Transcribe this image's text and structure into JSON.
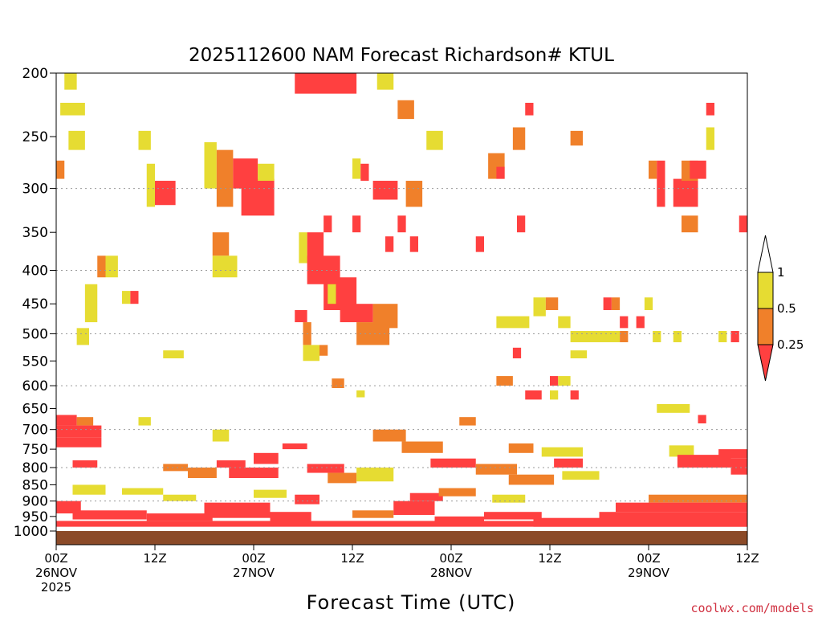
{
  "chart_data": {
    "type": "heatmap",
    "title": "2025112600 NAM Forecast Richardson# KTUL",
    "xlabel": "Forecast Time (UTC)",
    "ylabel": "",
    "x_range_hours": [
      0,
      84
    ],
    "y_range_hpa": [
      1000,
      200
    ],
    "y_scale": "log",
    "y_ticks": [
      200,
      250,
      300,
      350,
      400,
      450,
      500,
      550,
      600,
      650,
      700,
      750,
      800,
      850,
      900,
      950,
      1000
    ],
    "y_gridlines": [
      300,
      400,
      500,
      600,
      700,
      800,
      900
    ],
    "x_ticks": [
      {
        "hour": 0,
        "labels": [
          "00Z",
          "26NOV",
          "2025"
        ]
      },
      {
        "hour": 12,
        "labels": [
          "12Z"
        ]
      },
      {
        "hour": 24,
        "labels": [
          "00Z",
          "27NOV"
        ]
      },
      {
        "hour": 36,
        "labels": [
          "12Z"
        ]
      },
      {
        "hour": 48,
        "labels": [
          "00Z",
          "28NOV"
        ]
      },
      {
        "hour": 60,
        "labels": [
          "12Z"
        ]
      },
      {
        "hour": 72,
        "labels": [
          "00Z",
          "29NOV"
        ]
      },
      {
        "hour": 84,
        "labels": [
          "12Z"
        ]
      }
    ],
    "legend": {
      "position": "right",
      "thresholds": [
        "1",
        "0.5",
        "0.25"
      ],
      "categories": [
        {
          "name": "<0.25",
          "color": "#ff4040"
        },
        {
          "name": "0.25-0.5",
          "color": "#f0802a"
        },
        {
          "name": "0.5-1",
          "color": "#e6dc32"
        },
        {
          "name": ">1",
          "color": "#ffffff"
        }
      ]
    },
    "ground_color": "#8b4a28",
    "cells": [
      {
        "t0": 29.0,
        "t1": 36.5,
        "p_top": 200,
        "p_bot": 215,
        "c": "r"
      },
      {
        "t0": 39.0,
        "t1": 41.0,
        "p_top": 200,
        "p_bot": 212,
        "c": "y"
      },
      {
        "t0": 1.0,
        "t1": 2.5,
        "p_top": 200,
        "p_bot": 212,
        "c": "y"
      },
      {
        "t0": 0.5,
        "t1": 3.5,
        "p_top": 222,
        "p_bot": 232,
        "c": "y"
      },
      {
        "t0": 41.5,
        "t1": 43.5,
        "p_top": 220,
        "p_bot": 235,
        "c": "o"
      },
      {
        "t0": 57.0,
        "t1": 58.0,
        "p_top": 222,
        "p_bot": 232,
        "c": "r"
      },
      {
        "t0": 79.0,
        "t1": 80.0,
        "p_top": 222,
        "p_bot": 232,
        "c": "r"
      },
      {
        "t0": 1.5,
        "t1": 3.5,
        "p_top": 245,
        "p_bot": 262,
        "c": "y"
      },
      {
        "t0": 10.0,
        "t1": 11.5,
        "p_top": 245,
        "p_bot": 262,
        "c": "y"
      },
      {
        "t0": 45.0,
        "t1": 47.0,
        "p_top": 245,
        "p_bot": 262,
        "c": "y"
      },
      {
        "t0": 55.5,
        "t1": 57.0,
        "p_top": 242,
        "p_bot": 262,
        "c": "o"
      },
      {
        "t0": 62.5,
        "t1": 64.0,
        "p_top": 245,
        "p_bot": 258,
        "c": "o"
      },
      {
        "t0": 79.0,
        "t1": 80.0,
        "p_top": 242,
        "p_bot": 262,
        "c": "y"
      },
      {
        "t0": 0.0,
        "t1": 1.0,
        "p_top": 272,
        "p_bot": 290,
        "c": "o"
      },
      {
        "t0": 18.0,
        "t1": 19.5,
        "p_top": 255,
        "p_bot": 300,
        "c": "y"
      },
      {
        "t0": 19.5,
        "t1": 21.5,
        "p_top": 262,
        "p_bot": 320,
        "c": "o"
      },
      {
        "t0": 21.5,
        "t1": 24.5,
        "p_top": 270,
        "p_bot": 300,
        "c": "r"
      },
      {
        "t0": 22.5,
        "t1": 26.5,
        "p_top": 290,
        "p_bot": 330,
        "c": "r"
      },
      {
        "t0": 24.5,
        "t1": 26.5,
        "p_top": 275,
        "p_bot": 292,
        "c": "y"
      },
      {
        "t0": 12.0,
        "t1": 14.5,
        "p_top": 292,
        "p_bot": 318,
        "c": "r"
      },
      {
        "t0": 11.0,
        "t1": 12.0,
        "p_top": 275,
        "p_bot": 320,
        "c": "y"
      },
      {
        "t0": 52.5,
        "t1": 54.5,
        "p_top": 265,
        "p_bot": 290,
        "c": "o"
      },
      {
        "t0": 53.5,
        "t1": 54.5,
        "p_top": 278,
        "p_bot": 290,
        "c": "r"
      },
      {
        "t0": 72.0,
        "t1": 73.0,
        "p_top": 272,
        "p_bot": 290,
        "c": "o"
      },
      {
        "t0": 73.0,
        "t1": 74.0,
        "p_top": 272,
        "p_bot": 320,
        "c": "r"
      },
      {
        "t0": 75.0,
        "t1": 78.0,
        "p_top": 290,
        "p_bot": 320,
        "c": "r"
      },
      {
        "t0": 76.0,
        "t1": 78.0,
        "p_top": 272,
        "p_bot": 292,
        "c": "o"
      },
      {
        "t0": 77.0,
        "t1": 79.0,
        "p_top": 272,
        "p_bot": 290,
        "c": "r"
      },
      {
        "t0": 38.5,
        "t1": 41.5,
        "p_top": 292,
        "p_bot": 312,
        "c": "r"
      },
      {
        "t0": 42.5,
        "t1": 44.5,
        "p_top": 292,
        "p_bot": 320,
        "c": "o"
      },
      {
        "t0": 36.0,
        "t1": 37.0,
        "p_top": 270,
        "p_bot": 290,
        "c": "y"
      },
      {
        "t0": 37.0,
        "t1": 38.0,
        "p_top": 275,
        "p_bot": 292,
        "c": "r"
      },
      {
        "t0": 76.0,
        "t1": 78.0,
        "p_top": 330,
        "p_bot": 350,
        "c": "o"
      },
      {
        "t0": 83.0,
        "t1": 84.0,
        "p_top": 330,
        "p_bot": 350,
        "c": "r"
      },
      {
        "t0": 32.5,
        "t1": 33.5,
        "p_top": 330,
        "p_bot": 350,
        "c": "r"
      },
      {
        "t0": 36.0,
        "t1": 37.0,
        "p_top": 330,
        "p_bot": 350,
        "c": "r"
      },
      {
        "t0": 41.5,
        "t1": 42.5,
        "p_top": 330,
        "p_bot": 350,
        "c": "r"
      },
      {
        "t0": 43.0,
        "t1": 44.0,
        "p_top": 355,
        "p_bot": 375,
        "c": "r"
      },
      {
        "t0": 40.0,
        "t1": 41.0,
        "p_top": 355,
        "p_bot": 375,
        "c": "r"
      },
      {
        "t0": 56.0,
        "t1": 57.0,
        "p_top": 330,
        "p_bot": 350,
        "c": "r"
      },
      {
        "t0": 51.0,
        "t1": 52.0,
        "p_top": 355,
        "p_bot": 375,
        "c": "r"
      },
      {
        "t0": 19.0,
        "t1": 21.0,
        "p_top": 350,
        "p_bot": 380,
        "c": "o"
      },
      {
        "t0": 19.0,
        "t1": 22.0,
        "p_top": 380,
        "p_bot": 410,
        "c": "y"
      },
      {
        "t0": 30.5,
        "t1": 32.5,
        "p_top": 350,
        "p_bot": 390,
        "c": "r"
      },
      {
        "t0": 30.5,
        "t1": 34.5,
        "p_top": 380,
        "p_bot": 420,
        "c": "r"
      },
      {
        "t0": 32.5,
        "t1": 36.5,
        "p_top": 410,
        "p_bot": 460,
        "c": "r"
      },
      {
        "t0": 34.5,
        "t1": 38.5,
        "p_top": 450,
        "p_bot": 480,
        "c": "r"
      },
      {
        "t0": 36.5,
        "t1": 40.5,
        "p_top": 480,
        "p_bot": 520,
        "c": "o"
      },
      {
        "t0": 38.5,
        "t1": 41.5,
        "p_top": 450,
        "p_bot": 490,
        "c": "o"
      },
      {
        "t0": 29.5,
        "t1": 30.5,
        "p_top": 350,
        "p_bot": 390,
        "c": "y"
      },
      {
        "t0": 33.0,
        "t1": 34.0,
        "p_top": 420,
        "p_bot": 450,
        "c": "y"
      },
      {
        "t0": 5.0,
        "t1": 6.0,
        "p_top": 380,
        "p_bot": 410,
        "c": "o"
      },
      {
        "t0": 6.0,
        "t1": 7.5,
        "p_top": 380,
        "p_bot": 410,
        "c": "y"
      },
      {
        "t0": 3.5,
        "t1": 5.0,
        "p_top": 420,
        "p_bot": 480,
        "c": "y"
      },
      {
        "t0": 9.0,
        "t1": 10.0,
        "p_top": 430,
        "p_bot": 450,
        "c": "r"
      },
      {
        "t0": 8.0,
        "t1": 9.0,
        "p_top": 430,
        "p_bot": 450,
        "c": "y"
      },
      {
        "t0": 2.5,
        "t1": 4.0,
        "p_top": 490,
        "p_bot": 520,
        "c": "y"
      },
      {
        "t0": 29.0,
        "t1": 30.5,
        "p_top": 460,
        "p_bot": 480,
        "c": "r"
      },
      {
        "t0": 30.0,
        "t1": 31.0,
        "p_top": 480,
        "p_bot": 520,
        "c": "o"
      },
      {
        "t0": 30.0,
        "t1": 32.0,
        "p_top": 520,
        "p_bot": 550,
        "c": "y"
      },
      {
        "t0": 32.0,
        "t1": 33.0,
        "p_top": 520,
        "p_bot": 540,
        "c": "o"
      },
      {
        "t0": 58.0,
        "t1": 59.5,
        "p_top": 440,
        "p_bot": 470,
        "c": "y"
      },
      {
        "t0": 59.5,
        "t1": 61.0,
        "p_top": 440,
        "p_bot": 460,
        "c": "o"
      },
      {
        "t0": 53.5,
        "t1": 57.5,
        "p_top": 470,
        "p_bot": 490,
        "c": "y"
      },
      {
        "t0": 61.0,
        "t1": 62.5,
        "p_top": 470,
        "p_bot": 490,
        "c": "y"
      },
      {
        "t0": 66.5,
        "t1": 67.5,
        "p_top": 440,
        "p_bot": 460,
        "c": "r"
      },
      {
        "t0": 67.5,
        "t1": 68.5,
        "p_top": 440,
        "p_bot": 460,
        "c": "o"
      },
      {
        "t0": 68.5,
        "t1": 69.5,
        "p_top": 470,
        "p_bot": 490,
        "c": "r"
      },
      {
        "t0": 70.5,
        "t1": 71.5,
        "p_top": 470,
        "p_bot": 490,
        "c": "r"
      },
      {
        "t0": 71.5,
        "t1": 72.5,
        "p_top": 440,
        "p_bot": 460,
        "c": "y"
      },
      {
        "t0": 62.5,
        "t1": 68.5,
        "p_top": 495,
        "p_bot": 515,
        "c": "y"
      },
      {
        "t0": 68.5,
        "t1": 69.5,
        "p_top": 495,
        "p_bot": 515,
        "c": "o"
      },
      {
        "t0": 72.5,
        "t1": 73.5,
        "p_top": 495,
        "p_bot": 515,
        "c": "y"
      },
      {
        "t0": 75.0,
        "t1": 76.0,
        "p_top": 495,
        "p_bot": 515,
        "c": "y"
      },
      {
        "t0": 80.5,
        "t1": 81.5,
        "p_top": 495,
        "p_bot": 515,
        "c": "y"
      },
      {
        "t0": 82.0,
        "t1": 83.0,
        "p_top": 495,
        "p_bot": 515,
        "c": "r"
      },
      {
        "t0": 13.0,
        "t1": 15.5,
        "p_top": 530,
        "p_bot": 545,
        "c": "y"
      },
      {
        "t0": 62.5,
        "t1": 64.5,
        "p_top": 530,
        "p_bot": 545,
        "c": "y"
      },
      {
        "t0": 55.5,
        "t1": 56.5,
        "p_top": 525,
        "p_bot": 545,
        "c": "r"
      },
      {
        "t0": 53.5,
        "t1": 55.5,
        "p_top": 580,
        "p_bot": 600,
        "c": "o"
      },
      {
        "t0": 60.0,
        "t1": 61.0,
        "p_top": 580,
        "p_bot": 600,
        "c": "r"
      },
      {
        "t0": 61.0,
        "t1": 62.5,
        "p_top": 580,
        "p_bot": 600,
        "c": "y"
      },
      {
        "t0": 57.0,
        "t1": 59.0,
        "p_top": 610,
        "p_bot": 630,
        "c": "r"
      },
      {
        "t0": 60.0,
        "t1": 61.0,
        "p_top": 610,
        "p_bot": 630,
        "c": "y"
      },
      {
        "t0": 62.5,
        "t1": 63.5,
        "p_top": 610,
        "p_bot": 630,
        "c": "r"
      },
      {
        "t0": 33.5,
        "t1": 35.0,
        "p_top": 585,
        "p_bot": 605,
        "c": "o"
      },
      {
        "t0": 36.5,
        "t1": 37.5,
        "p_top": 610,
        "p_bot": 625,
        "c": "y"
      },
      {
        "t0": 73.0,
        "t1": 77.0,
        "p_top": 640,
        "p_bot": 660,
        "c": "y"
      },
      {
        "t0": 78.0,
        "t1": 79.0,
        "p_top": 665,
        "p_bot": 685,
        "c": "r"
      },
      {
        "t0": 0.0,
        "t1": 2.5,
        "p_top": 665,
        "p_bot": 690,
        "c": "r"
      },
      {
        "t0": 2.5,
        "t1": 4.5,
        "p_top": 670,
        "p_bot": 690,
        "c": "o"
      },
      {
        "t0": 0.0,
        "t1": 5.5,
        "p_top": 690,
        "p_bot": 720,
        "c": "r"
      },
      {
        "t0": 0.0,
        "t1": 5.5,
        "p_top": 720,
        "p_bot": 745,
        "c": "r"
      },
      {
        "t0": 10.0,
        "t1": 11.5,
        "p_top": 670,
        "p_bot": 690,
        "c": "y"
      },
      {
        "t0": 49.0,
        "t1": 51.0,
        "p_top": 670,
        "p_bot": 690,
        "c": "o"
      },
      {
        "t0": 38.5,
        "t1": 42.5,
        "p_top": 700,
        "p_bot": 730,
        "c": "o"
      },
      {
        "t0": 42.0,
        "t1": 47.0,
        "p_top": 730,
        "p_bot": 760,
        "c": "o"
      },
      {
        "t0": 19.0,
        "t1": 21.0,
        "p_top": 700,
        "p_bot": 730,
        "c": "y"
      },
      {
        "t0": 27.5,
        "t1": 30.5,
        "p_top": 735,
        "p_bot": 750,
        "c": "r"
      },
      {
        "t0": 55.0,
        "t1": 58.0,
        "p_top": 735,
        "p_bot": 760,
        "c": "o"
      },
      {
        "t0": 59.0,
        "t1": 64.0,
        "p_top": 745,
        "p_bot": 770,
        "c": "y"
      },
      {
        "t0": 74.5,
        "t1": 77.5,
        "p_top": 740,
        "p_bot": 770,
        "c": "y"
      },
      {
        "t0": 75.5,
        "t1": 82.0,
        "p_top": 765,
        "p_bot": 800,
        "c": "r"
      },
      {
        "t0": 80.5,
        "t1": 84.0,
        "p_top": 750,
        "p_bot": 775,
        "c": "r"
      },
      {
        "t0": 82.0,
        "t1": 84.0,
        "p_top": 775,
        "p_bot": 820,
        "c": "r"
      },
      {
        "t0": 2.0,
        "t1": 5.0,
        "p_top": 780,
        "p_bot": 800,
        "c": "r"
      },
      {
        "t0": 13.0,
        "t1": 16.0,
        "p_top": 790,
        "p_bot": 810,
        "c": "o"
      },
      {
        "t0": 16.0,
        "t1": 19.5,
        "p_top": 800,
        "p_bot": 830,
        "c": "o"
      },
      {
        "t0": 19.5,
        "t1": 23.0,
        "p_top": 780,
        "p_bot": 800,
        "c": "r"
      },
      {
        "t0": 21.0,
        "t1": 27.0,
        "p_top": 800,
        "p_bot": 830,
        "c": "r"
      },
      {
        "t0": 24.0,
        "t1": 27.0,
        "p_top": 760,
        "p_bot": 790,
        "c": "r"
      },
      {
        "t0": 30.5,
        "t1": 35.0,
        "p_top": 790,
        "p_bot": 815,
        "c": "r"
      },
      {
        "t0": 33.0,
        "t1": 36.5,
        "p_top": 815,
        "p_bot": 845,
        "c": "o"
      },
      {
        "t0": 36.5,
        "t1": 41.0,
        "p_top": 800,
        "p_bot": 840,
        "c": "y"
      },
      {
        "t0": 45.5,
        "t1": 51.0,
        "p_top": 775,
        "p_bot": 800,
        "c": "r"
      },
      {
        "t0": 51.0,
        "t1": 56.0,
        "p_top": 790,
        "p_bot": 820,
        "c": "o"
      },
      {
        "t0": 55.0,
        "t1": 60.5,
        "p_top": 820,
        "p_bot": 850,
        "c": "o"
      },
      {
        "t0": 61.5,
        "t1": 66.0,
        "p_top": 810,
        "p_bot": 835,
        "c": "y"
      },
      {
        "t0": 60.5,
        "t1": 64.0,
        "p_top": 775,
        "p_bot": 800,
        "c": "r"
      },
      {
        "t0": 2.0,
        "t1": 6.0,
        "p_top": 850,
        "p_bot": 880,
        "c": "y"
      },
      {
        "t0": 8.0,
        "t1": 13.0,
        "p_top": 860,
        "p_bot": 880,
        "c": "y"
      },
      {
        "t0": 29.0,
        "t1": 32.0,
        "p_top": 880,
        "p_bot": 910,
        "c": "r"
      },
      {
        "t0": 43.0,
        "t1": 47.0,
        "p_top": 875,
        "p_bot": 900,
        "c": "r"
      },
      {
        "t0": 46.5,
        "t1": 51.0,
        "p_top": 860,
        "p_bot": 885,
        "c": "o"
      },
      {
        "t0": 72.0,
        "t1": 84.0,
        "p_top": 880,
        "p_bot": 905,
        "c": "o"
      },
      {
        "t0": 68.0,
        "t1": 84.0,
        "p_top": 905,
        "p_bot": 935,
        "c": "r"
      },
      {
        "t0": 66.0,
        "t1": 84.0,
        "p_top": 935,
        "p_bot": 985,
        "c": "r"
      },
      {
        "t0": 0.0,
        "t1": 3.0,
        "p_top": 900,
        "p_bot": 940,
        "c": "r"
      },
      {
        "t0": 2.0,
        "t1": 11.0,
        "p_top": 930,
        "p_bot": 960,
        "c": "r"
      },
      {
        "t0": 11.0,
        "t1": 19.0,
        "p_top": 940,
        "p_bot": 965,
        "c": "r"
      },
      {
        "t0": 18.0,
        "t1": 26.0,
        "p_top": 905,
        "p_bot": 955,
        "c": "r"
      },
      {
        "t0": 26.0,
        "t1": 31.0,
        "p_top": 935,
        "p_bot": 970,
        "c": "r"
      },
      {
        "t0": 36.0,
        "t1": 41.0,
        "p_top": 930,
        "p_bot": 955,
        "c": "o"
      },
      {
        "t0": 41.0,
        "t1": 46.0,
        "p_top": 900,
        "p_bot": 945,
        "c": "r"
      },
      {
        "t0": 46.0,
        "t1": 52.0,
        "p_top": 950,
        "p_bot": 975,
        "c": "r"
      },
      {
        "t0": 52.0,
        "t1": 59.0,
        "p_top": 935,
        "p_bot": 960,
        "c": "r"
      },
      {
        "t0": 58.0,
        "t1": 66.0,
        "p_top": 955,
        "p_bot": 985,
        "c": "r"
      },
      {
        "t0": 0.0,
        "t1": 84.0,
        "p_top": 965,
        "p_bot": 985,
        "c": "r"
      },
      {
        "t0": 13.0,
        "t1": 17.0,
        "p_top": 880,
        "p_bot": 900,
        "c": "y"
      },
      {
        "t0": 24.0,
        "t1": 28.0,
        "p_top": 865,
        "p_bot": 890,
        "c": "y"
      },
      {
        "t0": 53.0,
        "t1": 57.0,
        "p_top": 880,
        "p_bot": 905,
        "c": "y"
      }
    ]
  },
  "legend_labels": [
    "1",
    "0.5",
    "0.25"
  ],
  "credit": "coolwx.com/models",
  "colors": {
    "r": "#ff4040",
    "o": "#f0802a",
    "y": "#e6dc32",
    "frame": "#000000",
    "grid": "#999999"
  }
}
